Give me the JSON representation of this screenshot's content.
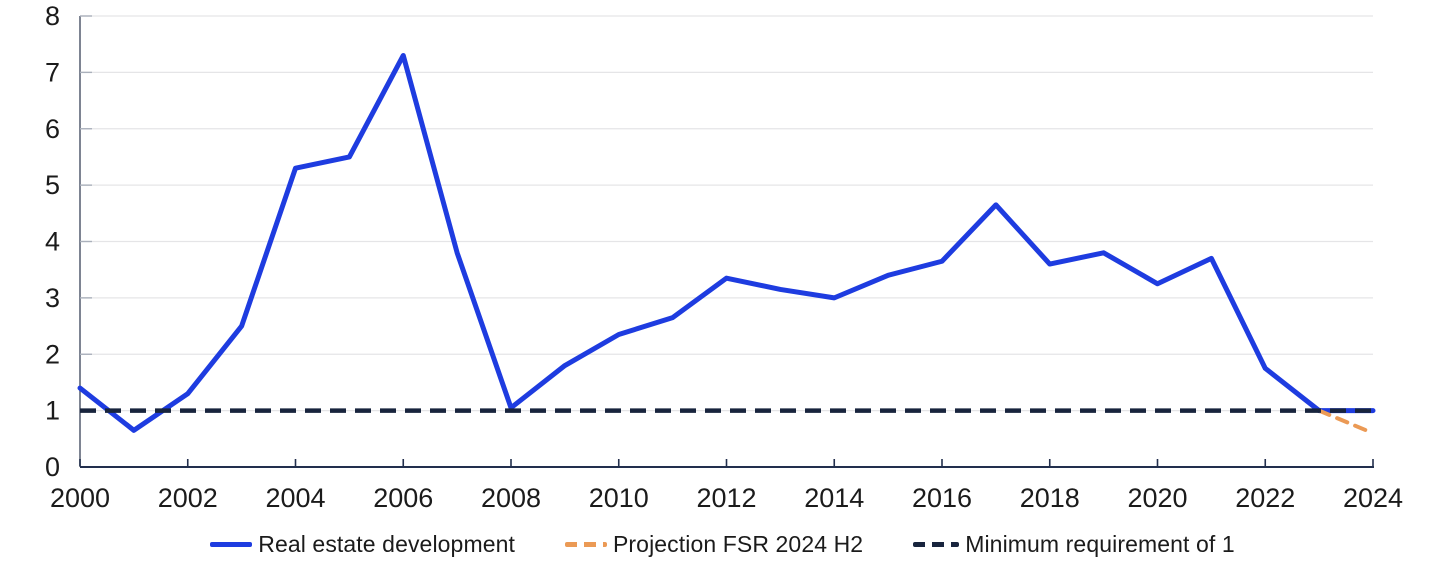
{
  "chart_data": {
    "type": "line",
    "ylim": [
      0,
      8
    ],
    "y_ticks": [
      0,
      1,
      2,
      3,
      4,
      5,
      6,
      7,
      8
    ],
    "x_ticks": [
      2000,
      2002,
      2004,
      2006,
      2008,
      2010,
      2012,
      2014,
      2016,
      2018,
      2020,
      2022,
      2024
    ],
    "grid": "horizontal",
    "legend_position": "bottom-center",
    "series": [
      {
        "name": "Real estate development",
        "style": "solid",
        "color": "#1e3ce0",
        "x": [
          2000,
          2001,
          2002,
          2003,
          2004,
          2005,
          2006,
          2007,
          2008,
          2009,
          2010,
          2011,
          2012,
          2013,
          2014,
          2015,
          2016,
          2017,
          2018,
          2019,
          2020,
          2021,
          2022,
          2023,
          2024
        ],
        "values": [
          1.4,
          0.65,
          1.3,
          2.5,
          5.3,
          5.5,
          7.3,
          3.8,
          1.05,
          1.8,
          2.35,
          2.65,
          3.35,
          3.15,
          3.0,
          3.4,
          3.65,
          4.65,
          3.6,
          3.8,
          3.25,
          3.7,
          1.75,
          1.0,
          1.0
        ]
      },
      {
        "name": "Projection FSR 2024 H2",
        "style": "dashed",
        "color": "#eb9a55",
        "x": [
          2023,
          2024
        ],
        "values": [
          1.0,
          0.6
        ]
      },
      {
        "name": "Minimum requirement of 1",
        "style": "dashed",
        "color": "#18243d",
        "x": [
          2000,
          2024
        ],
        "values": [
          1.0,
          1.0
        ]
      }
    ]
  },
  "colors": {
    "background": "#ffffff",
    "gridline": "#e5e5e7",
    "axis_left": "#5d6677",
    "y_tick": "#aab0bb",
    "axis_bottom": "#222f4d",
    "tick_label": "#1b1b1b"
  }
}
